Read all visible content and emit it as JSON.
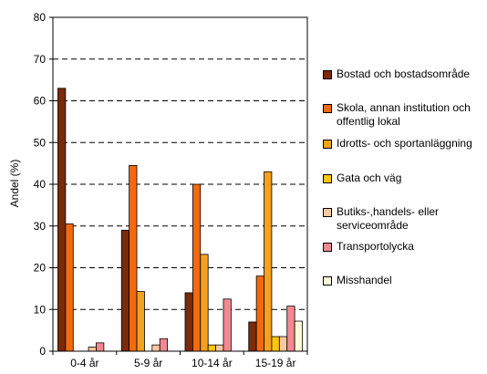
{
  "chart_data": {
    "type": "bar",
    "ylabel": "Andel (%)",
    "xlabel": "",
    "ylim": [
      0,
      80
    ],
    "yticks": [
      0,
      10,
      20,
      30,
      40,
      50,
      60,
      70,
      80
    ],
    "grid": "horizontal dashed",
    "legend_position": "right",
    "categories": [
      "0-4 år",
      "5-9 år",
      "10-14 år",
      "15-19 år"
    ],
    "series": [
      {
        "name": "Bostad och bostadsområde",
        "color": "#7B2A0A",
        "values": [
          63,
          29,
          14,
          7
        ]
      },
      {
        "name": "Skola, annan institution och\noffentlig lokal",
        "color": "#F26A0F",
        "values": [
          30.5,
          44.5,
          40,
          18
        ]
      },
      {
        "name": "Idrotts- och sportanläggning",
        "color": "#F4A020",
        "values": [
          0,
          14.3,
          23.2,
          43
        ]
      },
      {
        "name": "Gata och väg",
        "color": "#FFC60A",
        "values": [
          0,
          0,
          1.5,
          3.5
        ]
      },
      {
        "name": "Butiks-,handels- eller\nserviceområde",
        "color": "#FFC8A0",
        "values": [
          1,
          1.5,
          1.5,
          3.5
        ]
      },
      {
        "name": "Transportolycka",
        "color": "#F28890",
        "values": [
          2,
          3,
          12.5,
          10.8
        ]
      },
      {
        "name": "Misshandel",
        "color": "#FFFBD8",
        "values": [
          0,
          0,
          0,
          7.2
        ]
      }
    ]
  }
}
